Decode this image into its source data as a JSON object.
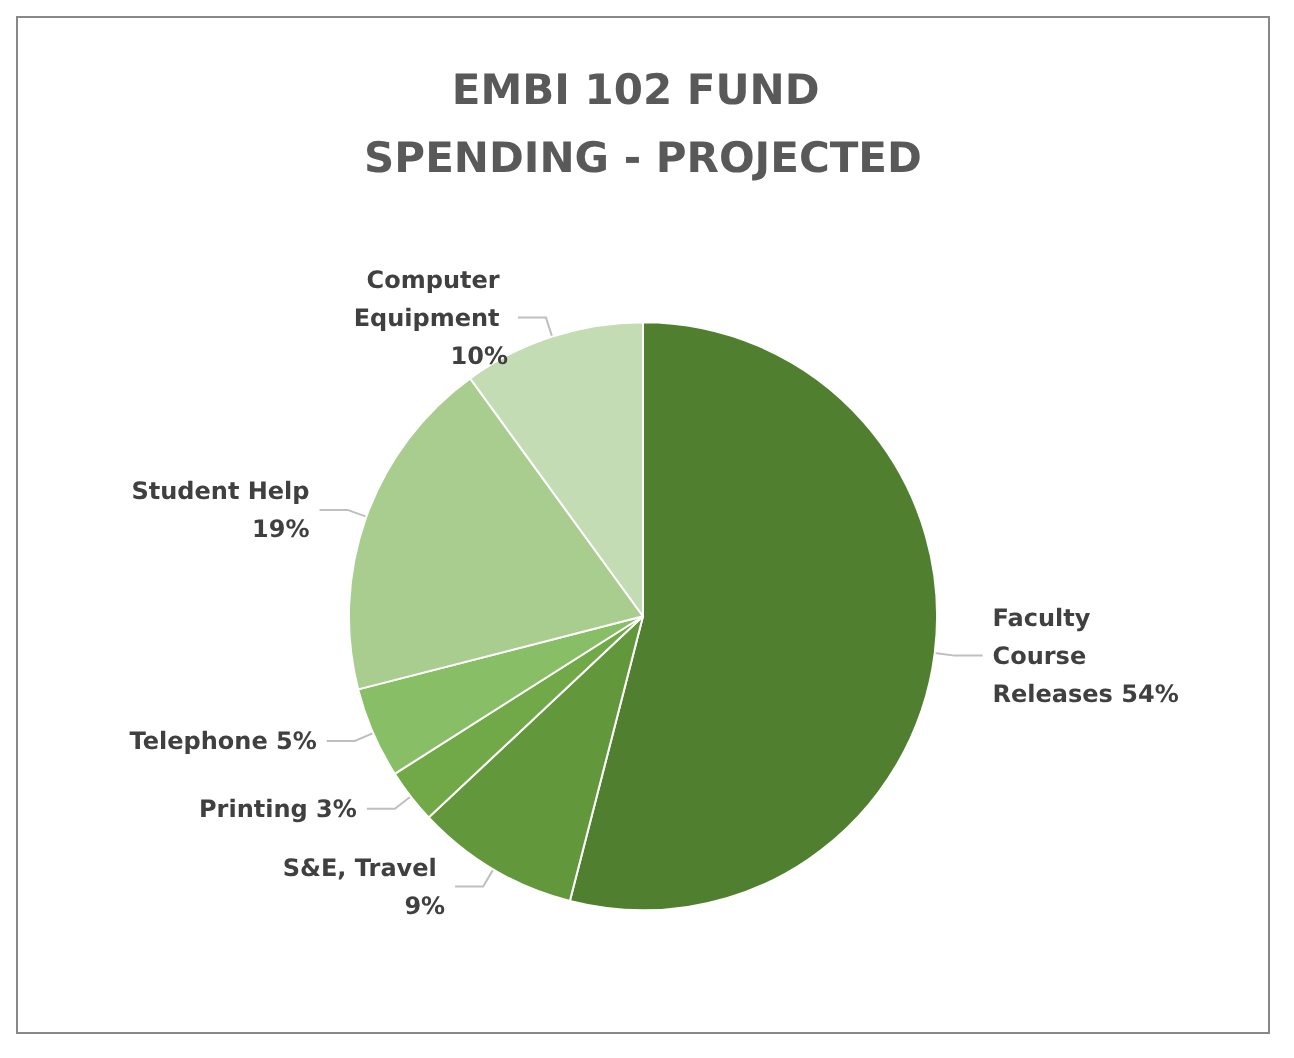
{
  "chart_data": {
    "type": "pie",
    "title": "EMBI 102 FUND SPENDING - PROJECTED",
    "categories": [
      "Faculty Course Releases",
      "S&E, Travel",
      "Printing",
      "Telephone",
      "Student Help",
      "Computer Equipment"
    ],
    "values": [
      54,
      9,
      3,
      5,
      19,
      10
    ],
    "value_labels": [
      "54%",
      "9%",
      "3%",
      "5%",
      "19%",
      "10%"
    ],
    "colors": [
      "#4f7f2f",
      "#62973b",
      "#71a948",
      "#88bf66",
      "#a8cd8e",
      "#c4dcb4"
    ]
  }
}
